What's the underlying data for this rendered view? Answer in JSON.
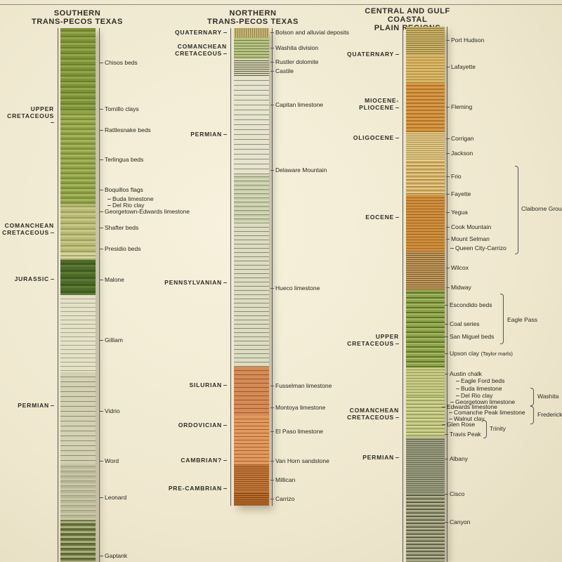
{
  "columns": [
    {
      "id": "southern",
      "title": "SOUTHERN\nTRANS-PECOS TEXAS",
      "units": [
        {
          "label": "UPPER\nCRETACEOUS"
        },
        {
          "label": "COMANCHEAN\nCRETACEOUS"
        },
        {
          "label": "JURASSIC"
        },
        {
          "label": "PERMIAN"
        }
      ],
      "formations": [
        "Chisos beds",
        "Tornillo clays",
        "Rattlesnake beds",
        "Terlingua beds",
        "Boquillos flags",
        "Buda limestone",
        "Del Rio clay",
        "Georgetown-Edwards limestone",
        "Shafter beds",
        "Presidio beds",
        "Malone",
        "Gilliam",
        "Vidrio",
        "Word",
        "Leonard",
        "Gaptank"
      ]
    },
    {
      "id": "northern",
      "title": "NORTHERN\nTRANS-PECOS TEXAS",
      "units": [
        {
          "label": "QUATERNARY"
        },
        {
          "label": "COMANCHEAN\nCRETACEOUS"
        },
        {
          "label": "PERMIAN"
        },
        {
          "label": "PENNSYLVANIAN"
        },
        {
          "label": "SILURIAN"
        },
        {
          "label": "ORDOVICIAN"
        },
        {
          "label": "CAMBRIAN?"
        },
        {
          "label": "PRE-CAMBRIAN"
        }
      ],
      "formations": [
        "Bolson and alluvial deposits",
        "Washita division",
        "Rustler dolomite",
        "Castile",
        "Capitan limestone",
        "Delaware Mountain",
        "Hueco limestone",
        "Fusselman limestone",
        "Montoya limestone",
        "El Paso limestone",
        "Van Horn sandstone",
        "Millican",
        "Carrizo"
      ]
    },
    {
      "id": "central",
      "title": "CENTRAL AND GULF COASTAL\nPLAIN REGIONS",
      "units": [
        {
          "label": "QUATERNARY"
        },
        {
          "label": "MIOCENE-\nPLIOCENE"
        },
        {
          "label": "OLIGOCENE"
        },
        {
          "label": "EOCENE"
        },
        {
          "label": "UPPER\nCRETACEOUS"
        },
        {
          "label": "COMANCHEAN\nCRETACEOUS"
        },
        {
          "label": "PERMIAN"
        }
      ],
      "formations": [
        "Port Hudson",
        "Lafayette",
        "Fleming",
        "Corrigan",
        "Jackson",
        "Frio",
        "Fayette",
        "Yegua",
        "Cook Mountain",
        "Mount Selman",
        "Queen City-Carrizo",
        "Wilcox",
        "Midway",
        "Escondido beds",
        "Coal series",
        "San Miguel beds",
        "Upson clay",
        "(Taylor marls)",
        "Austin chalk",
        "Eagle Ford beds",
        "Buda limestone",
        "Del Rio clay",
        "Georgetown limestone",
        "Edwards limestone",
        "Comanche Peak limestone",
        "Walnut clay",
        "Glen Rose",
        "Travis Peak",
        "Albany",
        "Cisco",
        "Canyon"
      ],
      "groups": [
        "Claiborne Group",
        "Eagle Pass",
        "Washita",
        "Fredericksburg",
        "Trinity"
      ]
    }
  ],
  "colors": {
    "paper": "#f3eddb",
    "cretaceous_green": "#8a9a3c",
    "jurassic_green": "#4e6a2a",
    "permian_gray": "#c9c7a8",
    "tertiary_orange": "#c8842e",
    "cambrian_orange": "#c97a3a"
  }
}
